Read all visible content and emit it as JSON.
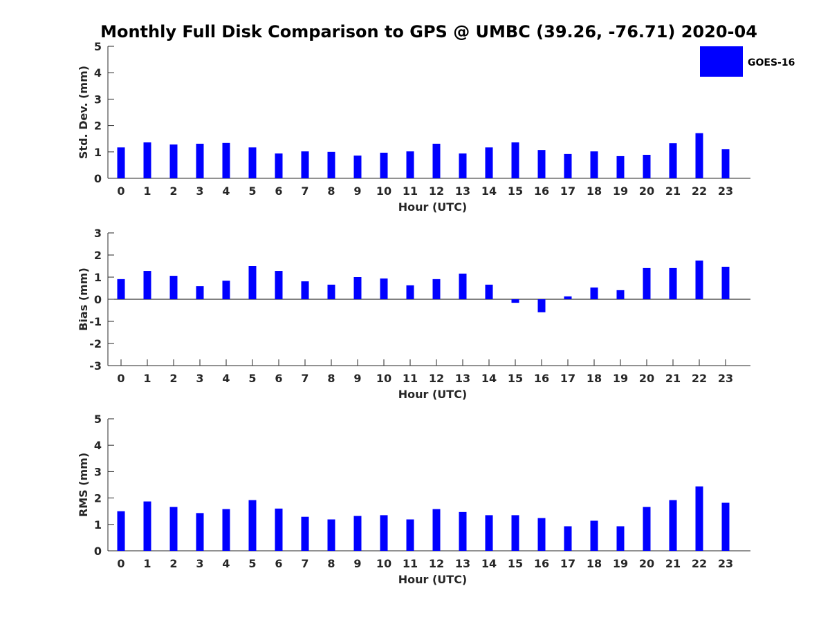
{
  "title": "Monthly Full Disk Comparison to GPS @ UMBC (39.26, -76.71) 2020-04",
  "legend": {
    "label": "GOES-16",
    "color": "#0000ff",
    "placement": "top-right"
  },
  "chart_data": [
    {
      "type": "bar",
      "categories": [
        "0",
        "1",
        "2",
        "3",
        "4",
        "5",
        "6",
        "7",
        "8",
        "9",
        "10",
        "11",
        "12",
        "13",
        "14",
        "15",
        "16",
        "17",
        "18",
        "19",
        "20",
        "21",
        "22",
        "23"
      ],
      "series": [
        {
          "name": "GOES-16",
          "values": [
            1.17,
            1.36,
            1.28,
            1.31,
            1.34,
            1.17,
            0.94,
            1.02,
            1.0,
            0.86,
            0.97,
            1.02,
            1.31,
            0.94,
            1.17,
            1.36,
            1.07,
            0.92,
            1.02,
            0.84,
            0.89,
            1.33,
            1.71,
            1.1
          ]
        }
      ],
      "xlabel": "Hour (UTC)",
      "ylabel": "Std. Dev. (mm)",
      "ylim": [
        0,
        5
      ],
      "yticks": [
        "0",
        "1",
        "2",
        "3",
        "4",
        "5"
      ],
      "grid": false
    },
    {
      "type": "bar",
      "categories": [
        "0",
        "1",
        "2",
        "3",
        "4",
        "5",
        "6",
        "7",
        "8",
        "9",
        "10",
        "11",
        "12",
        "13",
        "14",
        "15",
        "16",
        "17",
        "18",
        "19",
        "20",
        "21",
        "22",
        "23"
      ],
      "series": [
        {
          "name": "GOES-16",
          "values": [
            0.91,
            1.28,
            1.06,
            0.59,
            0.84,
            1.5,
            1.28,
            0.81,
            0.66,
            1.0,
            0.94,
            0.63,
            0.91,
            1.16,
            0.66,
            -0.16,
            -0.59,
            0.13,
            0.53,
            0.41,
            1.41,
            1.41,
            1.75,
            1.47
          ]
        }
      ],
      "xlabel": "Hour (UTC)",
      "ylabel": "Bias (mm)",
      "ylim": [
        -3,
        3
      ],
      "yticks": [
        "-3",
        "-2",
        "-1",
        "0",
        "1",
        "2",
        "3"
      ],
      "grid": false
    },
    {
      "type": "bar",
      "categories": [
        "0",
        "1",
        "2",
        "3",
        "4",
        "5",
        "6",
        "7",
        "8",
        "9",
        "10",
        "11",
        "12",
        "13",
        "14",
        "15",
        "16",
        "17",
        "18",
        "19",
        "20",
        "21",
        "22",
        "23"
      ],
      "series": [
        {
          "name": "GOES-16",
          "values": [
            1.5,
            1.87,
            1.66,
            1.43,
            1.58,
            1.92,
            1.6,
            1.29,
            1.19,
            1.32,
            1.35,
            1.19,
            1.58,
            1.47,
            1.35,
            1.35,
            1.24,
            0.93,
            1.14,
            0.93,
            1.66,
            1.92,
            2.44,
            1.82
          ]
        }
      ],
      "xlabel": "Hour (UTC)",
      "ylabel": "RMS (mm)",
      "ylim": [
        0,
        5
      ],
      "yticks": [
        "0",
        "1",
        "2",
        "3",
        "4",
        "5"
      ],
      "grid": false
    }
  ]
}
